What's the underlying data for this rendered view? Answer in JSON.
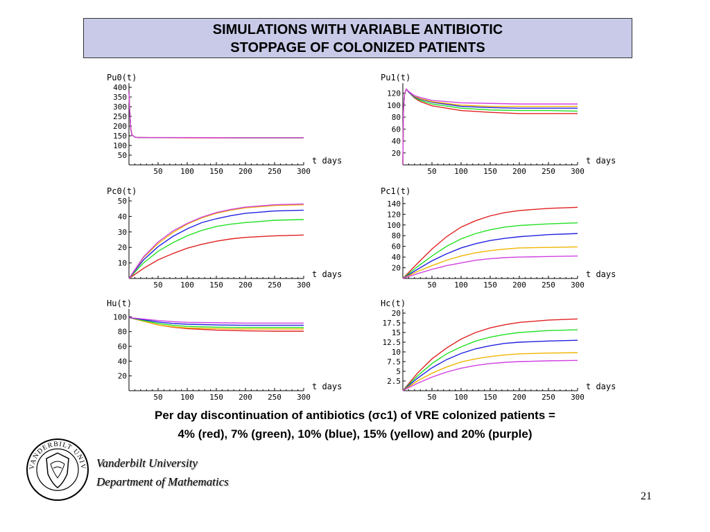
{
  "title": {
    "line1": "SIMULATIONS WITH VARIABLE ANTIBIOTIC",
    "line2": "STOPPAGE OF COLONIZED PATIENTS"
  },
  "caption": {
    "line1": "Per day discontinuation of antibiotics (σc1) of VRE colonized patients  =",
    "line2": "4% (red), 7% (green), 10% (blue), 15% (yellow) and 20% (purple)"
  },
  "institution": {
    "line1": "Vanderbilt University",
    "line2": "Department of Mathematics",
    "seal_text": "VANDERBILT UNIVERSITY"
  },
  "page_number": "21",
  "colors": {
    "red": "#e02020",
    "green": "#22e022",
    "blue": "#2020e0",
    "yellow": "#f0b400",
    "purple": "#d040e0",
    "title_bg": "#c8cae8"
  },
  "chart_data": [
    {
      "type": "line",
      "title": "Pu0(t)",
      "xlabel": "t days",
      "ylabel": "Pu0(t)",
      "xlim": [
        0,
        300
      ],
      "ylim": [
        0,
        400
      ],
      "x_ticks": [
        50,
        100,
        150,
        200,
        250,
        300
      ],
      "y_ticks": [
        50,
        100,
        150,
        200,
        250,
        300,
        350,
        400
      ],
      "y_tick_labels": [
        "50",
        "100",
        "150",
        "200",
        "250",
        "300",
        "350",
        "400"
      ],
      "series": [
        {
          "color": "red",
          "x": [
            0,
            1,
            3,
            5,
            10,
            15,
            20,
            50,
            100,
            150,
            200,
            250,
            300
          ],
          "y": [
            380,
            300,
            190,
            155,
            143,
            141,
            141,
            140,
            139,
            139,
            139,
            139,
            139
          ]
        },
        {
          "color": "green",
          "x": [
            0,
            1,
            3,
            5,
            10,
            15,
            20,
            50,
            100,
            150,
            200,
            250,
            300
          ],
          "y": [
            380,
            300,
            190,
            155,
            143,
            141,
            141,
            140,
            140,
            140,
            139,
            139,
            139
          ]
        },
        {
          "color": "blue",
          "x": [
            0,
            1,
            3,
            5,
            10,
            15,
            20,
            50,
            100,
            150,
            200,
            250,
            300
          ],
          "y": [
            380,
            300,
            190,
            155,
            143,
            141,
            141,
            140,
            140,
            140,
            140,
            140,
            140
          ]
        },
        {
          "color": "yellow",
          "x": [
            0,
            1,
            3,
            5,
            10,
            15,
            20,
            50,
            100,
            150,
            200,
            250,
            300
          ],
          "y": [
            380,
            300,
            190,
            155,
            143,
            141,
            141,
            141,
            140,
            140,
            140,
            140,
            140
          ]
        },
        {
          "color": "purple",
          "x": [
            0,
            1,
            3,
            5,
            10,
            15,
            20,
            50,
            100,
            150,
            200,
            250,
            300
          ],
          "y": [
            380,
            300,
            190,
            155,
            143,
            141,
            141,
            141,
            141,
            140,
            140,
            140,
            140
          ]
        }
      ]
    },
    {
      "type": "line",
      "title": "Pu1(t)",
      "xlabel": "t days",
      "ylabel": "Pu1(t)",
      "xlim": [
        0,
        300
      ],
      "ylim": [
        0,
        130
      ],
      "x_ticks": [
        50,
        100,
        150,
        200,
        250,
        300
      ],
      "y_ticks": [
        20,
        40,
        60,
        80,
        100,
        120
      ],
      "y_tick_labels": [
        "20",
        "40",
        "60",
        "80",
        "100",
        "120"
      ],
      "series": [
        {
          "color": "red",
          "x": [
            0,
            1,
            3,
            6,
            10,
            20,
            30,
            50,
            100,
            150,
            200,
            250,
            300
          ],
          "y": [
            0,
            90,
            120,
            127,
            122,
            112,
            106,
            99,
            91,
            88,
            86,
            86,
            86
          ]
        },
        {
          "color": "green",
          "x": [
            0,
            1,
            3,
            6,
            10,
            20,
            30,
            50,
            100,
            150,
            200,
            250,
            300
          ],
          "y": [
            0,
            90,
            120,
            127,
            122,
            113,
            108,
            102,
            95,
            92,
            91,
            91,
            90
          ]
        },
        {
          "color": "blue",
          "x": [
            0,
            1,
            3,
            6,
            10,
            20,
            30,
            50,
            100,
            150,
            200,
            250,
            300
          ],
          "y": [
            0,
            90,
            120,
            127,
            122,
            114,
            110,
            105,
            98,
            96,
            95,
            95,
            95
          ]
        },
        {
          "color": "yellow",
          "x": [
            0,
            1,
            3,
            6,
            10,
            20,
            30,
            50,
            100,
            150,
            200,
            250,
            300
          ],
          "y": [
            0,
            90,
            120,
            127,
            123,
            115,
            111,
            106,
            100,
            98,
            98,
            98,
            98
          ]
        },
        {
          "color": "purple",
          "x": [
            0,
            1,
            3,
            6,
            10,
            20,
            30,
            50,
            100,
            150,
            200,
            250,
            300
          ],
          "y": [
            0,
            90,
            120,
            127,
            123,
            116,
            113,
            108,
            104,
            103,
            102,
            102,
            102
          ]
        }
      ]
    },
    {
      "type": "line",
      "title": "Pc0(t)",
      "xlabel": "t days",
      "ylabel": "Pc0(t)",
      "xlim": [
        0,
        300
      ],
      "ylim": [
        0,
        50
      ],
      "x_ticks": [
        50,
        100,
        150,
        200,
        250,
        300
      ],
      "y_ticks": [
        10,
        20,
        30,
        40,
        50
      ],
      "y_tick_labels": [
        "10",
        "20",
        "30",
        "40",
        "50"
      ],
      "series": [
        {
          "color": "red",
          "x": [
            0,
            25,
            50,
            75,
            100,
            125,
            150,
            175,
            200,
            250,
            300
          ],
          "y": [
            0,
            6.5,
            12,
            16,
            19.5,
            22,
            24,
            25.5,
            26.5,
            27.5,
            28
          ]
        },
        {
          "color": "green",
          "x": [
            0,
            25,
            50,
            75,
            100,
            125,
            150,
            175,
            200,
            250,
            300
          ],
          "y": [
            0,
            10,
            17.5,
            23,
            27.5,
            31,
            33.5,
            35,
            36,
            37.5,
            38
          ]
        },
        {
          "color": "blue",
          "x": [
            0,
            25,
            50,
            75,
            100,
            125,
            150,
            175,
            200,
            250,
            300
          ],
          "y": [
            0,
            12,
            20.5,
            27,
            32,
            36,
            38.5,
            40.5,
            42,
            43.5,
            44
          ]
        },
        {
          "color": "yellow",
          "x": [
            0,
            25,
            50,
            75,
            100,
            125,
            150,
            175,
            200,
            250,
            300
          ],
          "y": [
            0,
            13.5,
            22.5,
            29.5,
            35,
            39,
            42,
            44,
            45.5,
            47,
            47.5
          ]
        },
        {
          "color": "purple",
          "x": [
            0,
            25,
            50,
            75,
            100,
            125,
            150,
            175,
            200,
            250,
            300
          ],
          "y": [
            0,
            14,
            23.5,
            30.5,
            35.5,
            39.5,
            42.5,
            44.5,
            46,
            47.5,
            48
          ]
        }
      ]
    },
    {
      "type": "line",
      "title": "Pc1(t)",
      "xlabel": "t days",
      "ylabel": "Pc1(t)",
      "xlim": [
        0,
        300
      ],
      "ylim": [
        0,
        145
      ],
      "x_ticks": [
        50,
        100,
        150,
        200,
        250,
        300
      ],
      "y_ticks": [
        20,
        40,
        60,
        80,
        100,
        120,
        140
      ],
      "y_tick_labels": [
        "20",
        "40",
        "60",
        "80",
        "100",
        "120",
        "140"
      ],
      "series": [
        {
          "color": "red",
          "x": [
            0,
            25,
            50,
            75,
            100,
            125,
            150,
            175,
            200,
            250,
            300
          ],
          "y": [
            0,
            28,
            55,
            78,
            96,
            108,
            117,
            123,
            127,
            131,
            133
          ]
        },
        {
          "color": "green",
          "x": [
            0,
            25,
            50,
            75,
            100,
            125,
            150,
            175,
            200,
            250,
            300
          ],
          "y": [
            0,
            22,
            42,
            60,
            74,
            84,
            91,
            96,
            99,
            102,
            104
          ]
        },
        {
          "color": "blue",
          "x": [
            0,
            25,
            50,
            75,
            100,
            125,
            150,
            175,
            200,
            250,
            300
          ],
          "y": [
            0,
            17,
            33,
            46,
            57,
            65,
            71,
            75,
            78,
            82,
            84
          ]
        },
        {
          "color": "yellow",
          "x": [
            0,
            25,
            50,
            75,
            100,
            125,
            150,
            175,
            200,
            250,
            300
          ],
          "y": [
            0,
            13,
            24,
            34,
            42,
            48,
            52,
            55,
            57,
            58,
            59
          ]
        },
        {
          "color": "purple",
          "x": [
            0,
            25,
            50,
            75,
            100,
            125,
            150,
            175,
            200,
            250,
            300
          ],
          "y": [
            0,
            9,
            17,
            24,
            29,
            34,
            37,
            39,
            40,
            41,
            42
          ]
        }
      ]
    },
    {
      "type": "line",
      "title": "Hu(t)",
      "xlabel": "t days",
      "ylabel": "Hu(t)",
      "xlim": [
        0,
        300
      ],
      "ylim": [
        0,
        105
      ],
      "x_ticks": [
        50,
        100,
        150,
        200,
        250,
        300
      ],
      "y_ticks": [
        20,
        40,
        60,
        80,
        100
      ],
      "y_tick_labels": [
        "20",
        "40",
        "60",
        "80",
        "100"
      ],
      "series": [
        {
          "color": "red",
          "x": [
            0,
            25,
            50,
            75,
            100,
            150,
            200,
            250,
            300
          ],
          "y": [
            99,
            94,
            89,
            86,
            84,
            82,
            81,
            80.5,
            80.5
          ]
        },
        {
          "color": "yellow",
          "x": [
            0,
            25,
            50,
            75,
            100,
            150,
            200,
            250,
            300
          ],
          "y": [
            99,
            94,
            89,
            86.5,
            85,
            84,
            83.5,
            83.5,
            83.5
          ]
        },
        {
          "color": "green",
          "x": [
            0,
            25,
            50,
            75,
            100,
            150,
            200,
            250,
            300
          ],
          "y": [
            99,
            95,
            91,
            88.5,
            87,
            86,
            85.5,
            85.5,
            85.5
          ]
        },
        {
          "color": "blue",
          "x": [
            0,
            25,
            50,
            75,
            100,
            150,
            200,
            250,
            300
          ],
          "y": [
            99,
            96,
            93,
            91,
            90,
            89,
            88.5,
            88.5,
            88.5
          ]
        },
        {
          "color": "purple",
          "x": [
            0,
            25,
            50,
            75,
            100,
            150,
            200,
            250,
            300
          ],
          "y": [
            99,
            97,
            95,
            93.5,
            92.5,
            92,
            91.5,
            91.5,
            91.5
          ]
        }
      ]
    },
    {
      "type": "line",
      "title": "Hc(t)",
      "xlabel": "t days",
      "ylabel": "Hc(t)",
      "xlim": [
        0,
        300
      ],
      "ylim": [
        0,
        20
      ],
      "x_ticks": [
        50,
        100,
        150,
        200,
        250,
        300
      ],
      "y_ticks": [
        2.5,
        5,
        7.5,
        10,
        12.5,
        15,
        17.5,
        20
      ],
      "y_tick_labels": [
        "2.5",
        "5",
        "7.5",
        "10",
        "12.5",
        "15",
        "17.5",
        "20"
      ],
      "series": [
        {
          "color": "red",
          "x": [
            0,
            25,
            50,
            75,
            100,
            125,
            150,
            175,
            200,
            250,
            300
          ],
          "y": [
            0,
            4.5,
            8.2,
            11,
            13.3,
            15,
            16.2,
            17,
            17.6,
            18.2,
            18.5
          ]
        },
        {
          "color": "green",
          "x": [
            0,
            25,
            50,
            75,
            100,
            125,
            150,
            175,
            200,
            250,
            300
          ],
          "y": [
            0,
            3.8,
            7,
            9.5,
            11.3,
            12.8,
            13.8,
            14.5,
            15,
            15.5,
            15.7
          ]
        },
        {
          "color": "blue",
          "x": [
            0,
            25,
            50,
            75,
            100,
            125,
            150,
            175,
            200,
            250,
            300
          ],
          "y": [
            0,
            3.2,
            5.9,
            8,
            9.6,
            10.8,
            11.6,
            12.2,
            12.5,
            12.8,
            13
          ]
        },
        {
          "color": "yellow",
          "x": [
            0,
            25,
            50,
            75,
            100,
            125,
            150,
            175,
            200,
            250,
            300
          ],
          "y": [
            0,
            2.5,
            4.5,
            6.1,
            7.4,
            8.2,
            8.8,
            9.2,
            9.5,
            9.7,
            9.8
          ]
        },
        {
          "color": "purple",
          "x": [
            0,
            25,
            50,
            75,
            100,
            125,
            150,
            175,
            200,
            250,
            300
          ],
          "y": [
            0,
            1.9,
            3.5,
            4.8,
            5.8,
            6.5,
            7,
            7.3,
            7.5,
            7.7,
            7.8
          ]
        }
      ]
    }
  ]
}
